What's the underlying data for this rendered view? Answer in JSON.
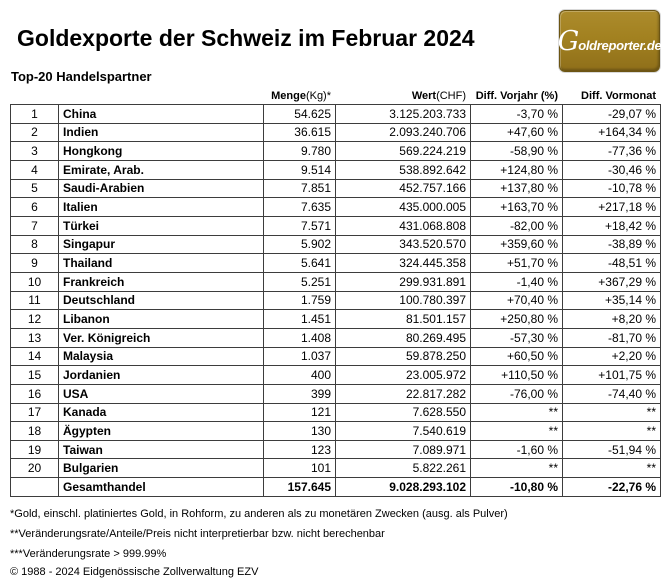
{
  "page": {
    "title": "Goldexporte der Schweiz im Februar 2024",
    "subtitle": "Top-20 Handelspartner",
    "logo": {
      "g": "G",
      "rest": "oldreporter.de",
      "bg_color": "#a28120",
      "border_color": "#6c5513",
      "text_color": "#ffffff"
    }
  },
  "chart_data": {
    "type": "table",
    "title": "Goldexporte der Schweiz im Februar 2024",
    "subtitle": "Top-20 Handelspartner",
    "columns": {
      "menge_bold": "Menge",
      "menge_rest": " (Kg)*",
      "wert_bold": "Wert",
      "wert_rest": " (CHF)",
      "vorjahr": "Diff. Vorjahr (%)",
      "vormonat": "Diff. Vormonat"
    },
    "rows": [
      {
        "rank": "1",
        "country": "China",
        "menge": "54.625",
        "wert": "3.125.203.733",
        "vorjahr": "-3,70 %",
        "vormonat": "-29,07 %"
      },
      {
        "rank": "2",
        "country": "Indien",
        "menge": "36.615",
        "wert": "2.093.240.706",
        "vorjahr": "+47,60 %",
        "vormonat": "+164,34 %"
      },
      {
        "rank": "3",
        "country": "Hongkong",
        "menge": "9.780",
        "wert": "569.224.219",
        "vorjahr": "-58,90 %",
        "vormonat": "-77,36 %"
      },
      {
        "rank": "4",
        "country": "Emirate, Arab.",
        "menge": "9.514",
        "wert": "538.892.642",
        "vorjahr": "+124,80 %",
        "vormonat": "-30,46 %"
      },
      {
        "rank": "5",
        "country": "Saudi-Arabien",
        "menge": "7.851",
        "wert": "452.757.166",
        "vorjahr": "+137,80 %",
        "vormonat": "-10,78 %"
      },
      {
        "rank": "6",
        "country": "Italien",
        "menge": "7.635",
        "wert": "435.000.005",
        "vorjahr": "+163,70 %",
        "vormonat": "+217,18 %"
      },
      {
        "rank": "7",
        "country": "Türkei",
        "menge": "7.571",
        "wert": "431.068.808",
        "vorjahr": "-82,00 %",
        "vormonat": "+18,42 %"
      },
      {
        "rank": "8",
        "country": "Singapur",
        "menge": "5.902",
        "wert": "343.520.570",
        "vorjahr": "+359,60 %",
        "vormonat": "-38,89 %"
      },
      {
        "rank": "9",
        "country": "Thailand",
        "menge": "5.641",
        "wert": "324.445.358",
        "vorjahr": "+51,70 %",
        "vormonat": "-48,51 %"
      },
      {
        "rank": "10",
        "country": "Frankreich",
        "menge": "5.251",
        "wert": "299.931.891",
        "vorjahr": "-1,40 %",
        "vormonat": "+367,29 %"
      },
      {
        "rank": "11",
        "country": "Deutschland",
        "menge": "1.759",
        "wert": "100.780.397",
        "vorjahr": "+70,40 %",
        "vormonat": "+35,14 %"
      },
      {
        "rank": "12",
        "country": "Libanon",
        "menge": "1.451",
        "wert": "81.501.157",
        "vorjahr": "+250,80 %",
        "vormonat": "+8,20 %"
      },
      {
        "rank": "13",
        "country": "Ver. Königreich",
        "menge": "1.408",
        "wert": "80.269.495",
        "vorjahr": "-57,30 %",
        "vormonat": "-81,70 %"
      },
      {
        "rank": "14",
        "country": "Malaysia",
        "menge": "1.037",
        "wert": "59.878.250",
        "vorjahr": "+60,50 %",
        "vormonat": "+2,20 %"
      },
      {
        "rank": "15",
        "country": "Jordanien",
        "menge": "400",
        "wert": "23.005.972",
        "vorjahr": "+110,50 %",
        "vormonat": "+101,75 %"
      },
      {
        "rank": "16",
        "country": "USA",
        "menge": "399",
        "wert": "22.817.282",
        "vorjahr": "-76,00 %",
        "vormonat": "-74,40 %"
      },
      {
        "rank": "17",
        "country": "Kanada",
        "menge": "121",
        "wert": "7.628.550",
        "vorjahr": "**",
        "vormonat": "**"
      },
      {
        "rank": "18",
        "country": "Ägypten",
        "menge": "130",
        "wert": "7.540.619",
        "vorjahr": "**",
        "vormonat": "**"
      },
      {
        "rank": "19",
        "country": "Taiwan",
        "menge": "123",
        "wert": "7.089.971",
        "vorjahr": "-1,60 %",
        "vormonat": "-51,94 %"
      },
      {
        "rank": "20",
        "country": "Bulgarien",
        "menge": "101",
        "wert": "5.822.261",
        "vorjahr": "**",
        "vormonat": "**"
      }
    ],
    "total": {
      "label": "Gesamthandel",
      "menge": "157.645",
      "wert": "9.028.293.102",
      "vorjahr": "-10,80 %",
      "vormonat": "-22,76 %"
    }
  },
  "footnotes": [
    "*Gold, einschl. platiniertes Gold, in Rohform, zu anderen als zu monetären Zwecken (ausg. als Pulver)",
    "**Veränderungsrate/Anteile/Preis nicht interpretierbar bzw. nicht berechenbar",
    "***Veränderungsrate > 999.99%"
  ],
  "copyright": "© 1988 - 2024 Eidgenössische Zollverwaltung EZV"
}
